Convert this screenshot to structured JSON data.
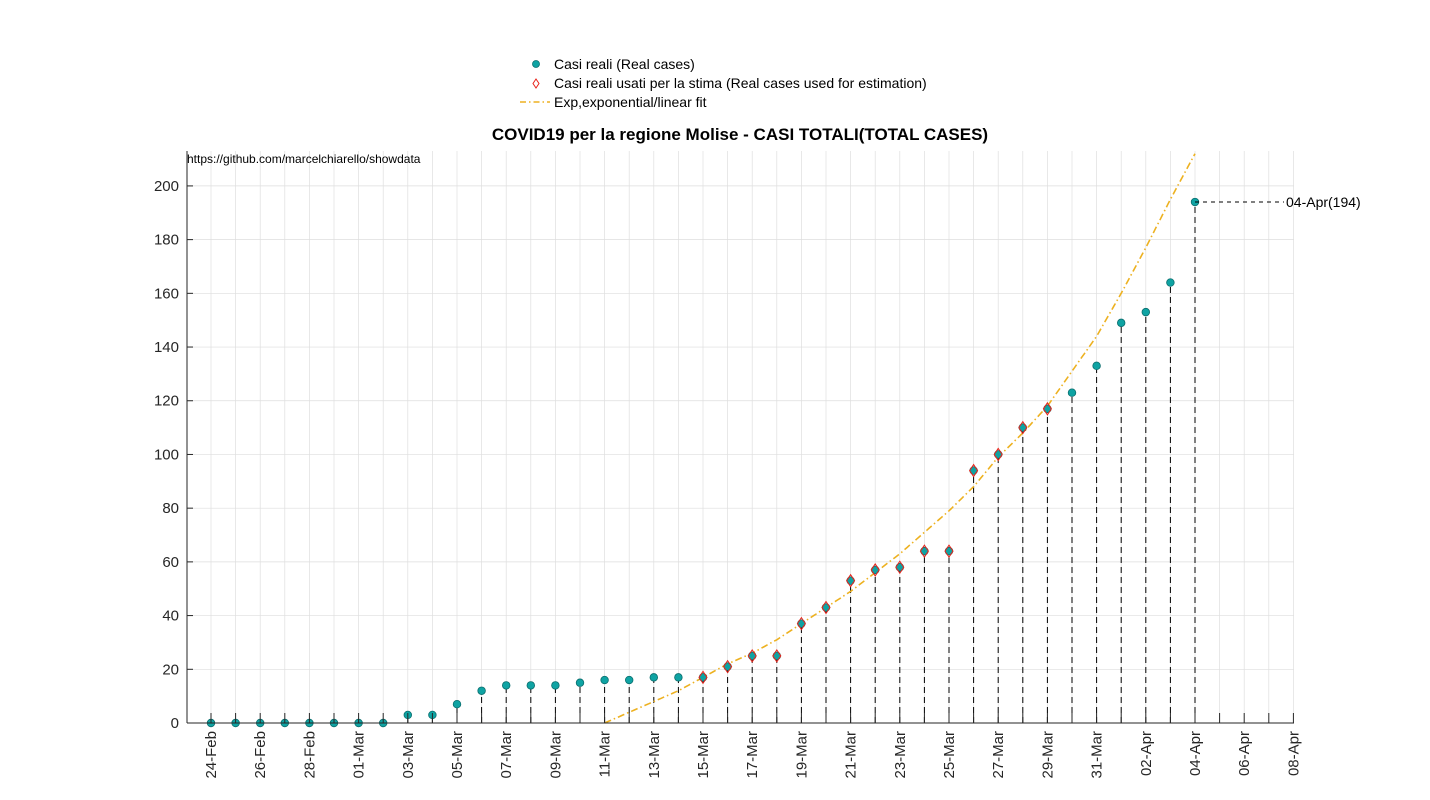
{
  "chart_data": {
    "type": "scatter",
    "title": "COVID19 per la regione Molise - CASI TOTALI(TOTAL CASES)",
    "source_url": "https://github.com/marcelchiarello/showdata",
    "xlabel": "",
    "ylabel": "",
    "ylim": [
      0,
      213
    ],
    "y_ticks": [
      0,
      20,
      40,
      60,
      80,
      100,
      120,
      140,
      160,
      180,
      200
    ],
    "x_dates": [
      "24-Feb",
      "25-Feb",
      "26-Feb",
      "27-Feb",
      "28-Feb",
      "29-Feb",
      "01-Mar",
      "02-Mar",
      "03-Mar",
      "04-Mar",
      "05-Mar",
      "06-Mar",
      "07-Mar",
      "08-Mar",
      "09-Mar",
      "10-Mar",
      "11-Mar",
      "12-Mar",
      "13-Mar",
      "14-Mar",
      "15-Mar",
      "16-Mar",
      "17-Mar",
      "18-Mar",
      "19-Mar",
      "20-Mar",
      "21-Mar",
      "22-Mar",
      "23-Mar",
      "24-Mar",
      "25-Mar",
      "26-Mar",
      "27-Mar",
      "28-Mar",
      "29-Mar",
      "30-Mar",
      "31-Mar",
      "01-Apr",
      "02-Apr",
      "03-Apr",
      "04-Apr",
      "05-Apr",
      "06-Apr",
      "07-Apr",
      "08-Apr"
    ],
    "x_tick_labels": [
      "24-Feb",
      "26-Feb",
      "28-Feb",
      "01-Mar",
      "03-Mar",
      "05-Mar",
      "07-Mar",
      "09-Mar",
      "11-Mar",
      "13-Mar",
      "15-Mar",
      "17-Mar",
      "19-Mar",
      "21-Mar",
      "23-Mar",
      "25-Mar",
      "27-Mar",
      "29-Mar",
      "31-Mar",
      "02-Apr",
      "04-Apr",
      "06-Apr",
      "08-Apr"
    ],
    "legend": {
      "placement": "top-center"
    },
    "grid": true,
    "series": [
      {
        "name": "Casi reali (Real cases)",
        "marker": "circle",
        "color": "#0fa3a3",
        "dates": [
          "24-Feb",
          "25-Feb",
          "26-Feb",
          "27-Feb",
          "28-Feb",
          "29-Feb",
          "01-Mar",
          "02-Mar",
          "03-Mar",
          "04-Mar",
          "05-Mar",
          "06-Mar",
          "07-Mar",
          "08-Mar",
          "09-Mar",
          "10-Mar",
          "11-Mar",
          "12-Mar",
          "13-Mar",
          "14-Mar",
          "15-Mar",
          "16-Mar",
          "17-Mar",
          "18-Mar",
          "19-Mar",
          "20-Mar",
          "21-Mar",
          "22-Mar",
          "23-Mar",
          "24-Mar",
          "25-Mar",
          "26-Mar",
          "27-Mar",
          "28-Mar",
          "29-Mar",
          "30-Mar",
          "31-Mar",
          "01-Apr",
          "02-Apr",
          "03-Apr",
          "04-Apr"
        ],
        "values": [
          0,
          0,
          0,
          0,
          0,
          0,
          0,
          0,
          3,
          3,
          7,
          12,
          14,
          14,
          14,
          15,
          16,
          16,
          17,
          17,
          17,
          21,
          25,
          25,
          37,
          43,
          53,
          57,
          58,
          64,
          64,
          94,
          100,
          110,
          117,
          123,
          133,
          149,
          153,
          164,
          194
        ]
      },
      {
        "name": "Casi reali usati per la stima (Real cases used for estimation)",
        "marker": "diamond",
        "color": "#e8231a",
        "dates": [
          "15-Mar",
          "16-Mar",
          "17-Mar",
          "18-Mar",
          "19-Mar",
          "20-Mar",
          "21-Mar",
          "22-Mar",
          "23-Mar",
          "24-Mar",
          "25-Mar",
          "26-Mar",
          "27-Mar",
          "28-Mar",
          "29-Mar"
        ],
        "values": [
          17,
          21,
          25,
          25,
          37,
          43,
          53,
          57,
          58,
          64,
          64,
          94,
          100,
          110,
          117
        ]
      },
      {
        "name": "Exp,exponential/linear fit",
        "line_style": "dash-dot",
        "color": "#edb120",
        "dates": [
          "11-Mar",
          "12-Mar",
          "13-Mar",
          "14-Mar",
          "15-Mar",
          "16-Mar",
          "17-Mar",
          "18-Mar",
          "19-Mar",
          "20-Mar",
          "21-Mar",
          "22-Mar",
          "23-Mar",
          "24-Mar",
          "25-Mar",
          "26-Mar",
          "27-Mar",
          "28-Mar",
          "29-Mar",
          "30-Mar",
          "31-Mar",
          "01-Apr",
          "02-Apr",
          "03-Apr",
          "04-Apr"
        ],
        "values": [
          0,
          4,
          8,
          12,
          17,
          22,
          26,
          31,
          37,
          43,
          49,
          56,
          63,
          71,
          79,
          88,
          99,
          108,
          118,
          131,
          144,
          160,
          177,
          195,
          212
        ]
      }
    ],
    "annotations": [
      {
        "text": "04-Apr(194)",
        "date": "04-Apr",
        "value": 194
      }
    ],
    "colors": {
      "axis": "#262626",
      "grid": "#dedede",
      "stem": "#000000"
    }
  }
}
